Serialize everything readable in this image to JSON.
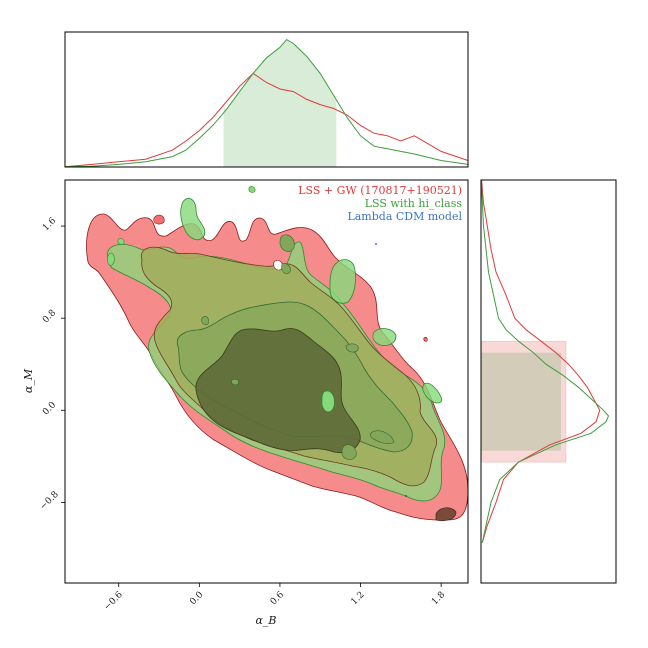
{
  "chart_data": {
    "type": "corner-contour",
    "xlabel": "α_B",
    "ylabel": "α_M",
    "x_ticks": [
      -0.6,
      0.0,
      0.6,
      1.2,
      1.8
    ],
    "x_tick_labels": [
      "−0.6",
      "0.0",
      "0.6",
      "1.2",
      "1.8"
    ],
    "y_ticks": [
      -0.8,
      0.0,
      0.8,
      1.6
    ],
    "y_tick_labels": [
      "−0.8",
      "0.0",
      "0.8",
      "1.6"
    ],
    "xlim": [
      -1.0,
      2.0
    ],
    "ylim": [
      -1.5,
      2.0
    ],
    "legend_position": "top-right",
    "series": [
      {
        "name": "LSS + GW (170817+190521)",
        "color": "#e03a3a",
        "marginal_x": [
          [
            -1.0,
            0.002
          ],
          [
            -0.8,
            0.02
          ],
          [
            -0.6,
            0.04
          ],
          [
            -0.4,
            0.06
          ],
          [
            -0.2,
            0.13
          ],
          [
            -0.1,
            0.2
          ],
          [
            0.0,
            0.28
          ],
          [
            0.1,
            0.38
          ],
          [
            0.2,
            0.5
          ],
          [
            0.3,
            0.62
          ],
          [
            0.4,
            0.72
          ],
          [
            0.5,
            0.65
          ],
          [
            0.6,
            0.6
          ],
          [
            0.7,
            0.58
          ],
          [
            0.8,
            0.52
          ],
          [
            0.9,
            0.48
          ],
          [
            1.0,
            0.45
          ],
          [
            1.1,
            0.4
          ],
          [
            1.2,
            0.32
          ],
          [
            1.3,
            0.26
          ],
          [
            1.4,
            0.24
          ],
          [
            1.5,
            0.2
          ],
          [
            1.6,
            0.24
          ],
          [
            1.7,
            0.18
          ],
          [
            1.8,
            0.12
          ],
          [
            2.0,
            0.05
          ]
        ],
        "marginal_y": [
          [
            -1.15,
            0.01
          ],
          [
            -1.0,
            0.05
          ],
          [
            -0.8,
            0.12
          ],
          [
            -0.6,
            0.18
          ],
          [
            -0.45,
            0.3
          ],
          [
            -0.3,
            0.55
          ],
          [
            -0.2,
            0.8
          ],
          [
            -0.1,
            0.92
          ],
          [
            0.0,
            0.95
          ],
          [
            0.1,
            0.9
          ],
          [
            0.2,
            0.85
          ],
          [
            0.3,
            0.78
          ],
          [
            0.4,
            0.7
          ],
          [
            0.5,
            0.6
          ],
          [
            0.6,
            0.48
          ],
          [
            0.7,
            0.36
          ],
          [
            0.8,
            0.27
          ],
          [
            1.0,
            0.2
          ],
          [
            1.2,
            0.12
          ],
          [
            1.4,
            0.08
          ],
          [
            1.6,
            0.05
          ],
          [
            1.8,
            0.02
          ],
          [
            2.0,
            0.005
          ]
        ],
        "credible_interval_y": [
          -0.45,
          0.6
        ]
      },
      {
        "name": "LSS with hi_class",
        "color": "#3e9e3e",
        "marginal_x": [
          [
            -1.0,
            0.002
          ],
          [
            -0.8,
            0.005
          ],
          [
            -0.6,
            0.02
          ],
          [
            -0.4,
            0.04
          ],
          [
            -0.2,
            0.08
          ],
          [
            -0.1,
            0.13
          ],
          [
            0.0,
            0.22
          ],
          [
            0.1,
            0.32
          ],
          [
            0.2,
            0.44
          ],
          [
            0.3,
            0.58
          ],
          [
            0.4,
            0.72
          ],
          [
            0.5,
            0.84
          ],
          [
            0.6,
            0.92
          ],
          [
            0.65,
            0.98
          ],
          [
            0.7,
            0.95
          ],
          [
            0.8,
            0.85
          ],
          [
            0.9,
            0.72
          ],
          [
            1.0,
            0.55
          ],
          [
            1.1,
            0.38
          ],
          [
            1.2,
            0.24
          ],
          [
            1.3,
            0.16
          ],
          [
            1.4,
            0.14
          ],
          [
            1.5,
            0.12
          ],
          [
            1.6,
            0.1
          ],
          [
            1.8,
            0.05
          ],
          [
            2.0,
            0.02
          ]
        ],
        "marginal_y": [
          [
            -1.15,
            0.01
          ],
          [
            -1.0,
            0.04
          ],
          [
            -0.8,
            0.08
          ],
          [
            -0.6,
            0.15
          ],
          [
            -0.45,
            0.3
          ],
          [
            -0.3,
            0.6
          ],
          [
            -0.2,
            0.88
          ],
          [
            -0.1,
            1.0
          ],
          [
            -0.05,
            1.02
          ],
          [
            0.0,
            0.98
          ],
          [
            0.1,
            0.88
          ],
          [
            0.2,
            0.78
          ],
          [
            0.3,
            0.66
          ],
          [
            0.4,
            0.52
          ],
          [
            0.5,
            0.42
          ],
          [
            0.6,
            0.3
          ],
          [
            0.7,
            0.2
          ],
          [
            0.8,
            0.14
          ],
          [
            1.0,
            0.1
          ],
          [
            1.2,
            0.06
          ],
          [
            1.4,
            0.04
          ],
          [
            1.6,
            0.02
          ],
          [
            2.0,
            0.002
          ]
        ],
        "credible_interval_x": [
          0.18,
          1.02
        ],
        "credible_interval_y": [
          -0.35,
          0.5
        ]
      },
      {
        "name": "Lambda CDM model",
        "color": "#3b74c4"
      }
    ]
  }
}
